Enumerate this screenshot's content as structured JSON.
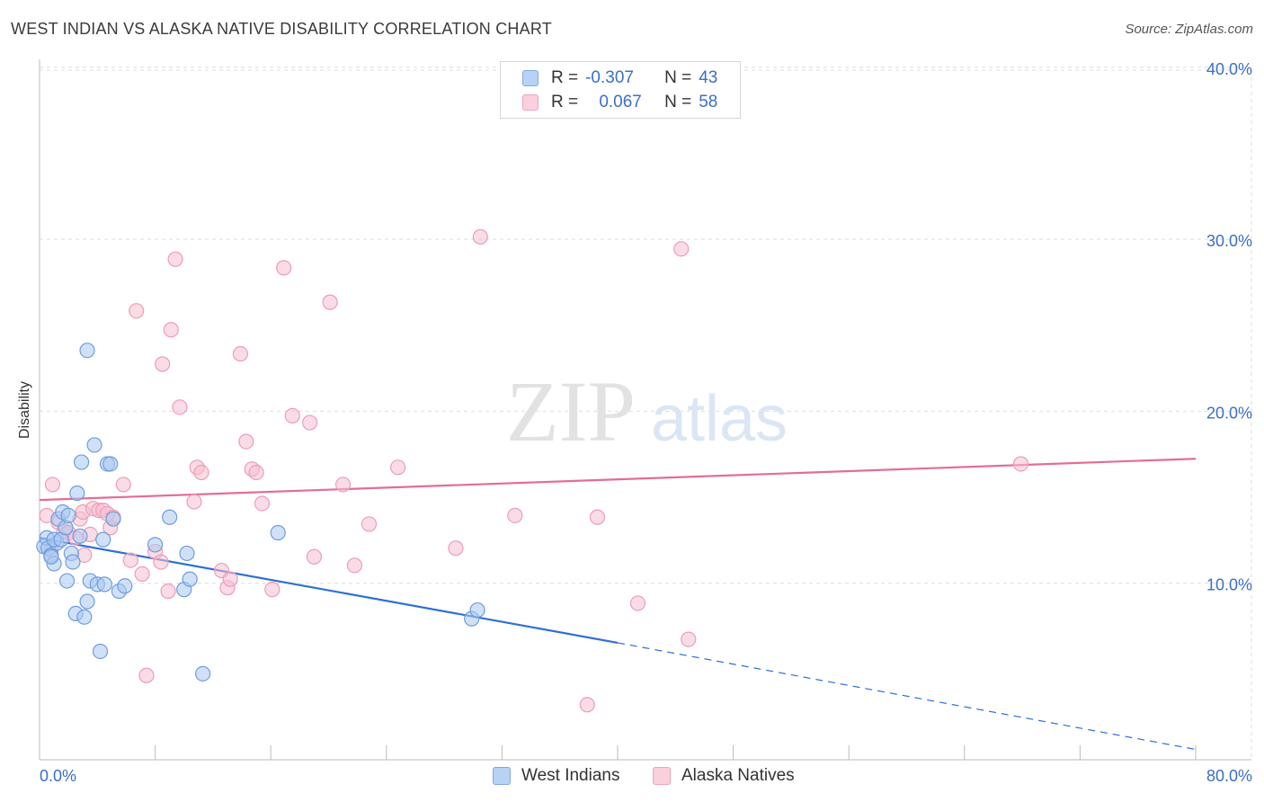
{
  "title": "WEST INDIAN VS ALASKA NATIVE DISABILITY CORRELATION CHART",
  "source": "Source: ZipAtlas.com",
  "watermark": {
    "zip": "ZIP",
    "atlas": "atlas"
  },
  "legend": {
    "rows": [
      {
        "r_label": "R =",
        "r_value": "-0.307",
        "n_label": "N =",
        "n_value": "43"
      },
      {
        "r_label": "R =",
        "r_value": "0.067",
        "n_label": "N =",
        "n_value": "58"
      }
    ]
  },
  "colors": {
    "blue_fill": "#a9c8f0",
    "blue_stroke": "#6d9de0",
    "blue_line": "#2d6fd6",
    "pink_fill": "#f6bfd0",
    "pink_stroke": "#ee9cb7",
    "pink_line": "#e46d95",
    "grid": "#dddddd",
    "tick_text": "#3a6fc8"
  },
  "chart_data": {
    "type": "scatter",
    "title": "WEST INDIAN VS ALASKA NATIVE DISABILITY CORRELATION CHART",
    "xlabel": "",
    "ylabel": "Disability",
    "xlim": [
      0,
      80
    ],
    "ylim": [
      0,
      42
    ],
    "x_tick_labels": [
      "0.0%",
      "80.0%"
    ],
    "y_ticks": [
      10,
      20,
      30,
      40
    ],
    "y_tick_labels": [
      "10.0%",
      "20.0%",
      "30.0%",
      "40.0%"
    ],
    "grid": true,
    "legend_position": "bottom-center",
    "series": [
      {
        "name": "West Indians",
        "r": -0.307,
        "n": 43,
        "trend": {
          "x0": 0,
          "y0": 12.9,
          "x1": 40,
          "y1": 6.8,
          "dashed_to_x": 80,
          "dashed_to_y": 0.6
        },
        "points": [
          [
            0.3,
            12.4
          ],
          [
            0.5,
            12.9
          ],
          [
            0.6,
            12.3
          ],
          [
            0.8,
            11.9
          ],
          [
            1.0,
            11.4
          ],
          [
            1.2,
            12.6
          ],
          [
            1.0,
            12.8
          ],
          [
            1.3,
            14.0
          ],
          [
            1.5,
            12.8
          ],
          [
            1.6,
            14.4
          ],
          [
            1.8,
            13.5
          ],
          [
            1.9,
            10.4
          ],
          [
            2.0,
            14.2
          ],
          [
            2.2,
            12.0
          ],
          [
            2.3,
            11.5
          ],
          [
            2.5,
            8.5
          ],
          [
            2.6,
            15.5
          ],
          [
            2.8,
            13.0
          ],
          [
            2.9,
            17.3
          ],
          [
            3.1,
            8.3
          ],
          [
            3.3,
            9.2
          ],
          [
            3.5,
            10.4
          ],
          [
            3.8,
            18.3
          ],
          [
            4.0,
            10.2
          ],
          [
            4.2,
            6.3
          ],
          [
            4.4,
            12.8
          ],
          [
            4.5,
            10.2
          ],
          [
            4.7,
            17.2
          ],
          [
            4.9,
            17.2
          ],
          [
            5.1,
            14.0
          ],
          [
            5.5,
            9.8
          ],
          [
            5.9,
            10.1
          ],
          [
            3.3,
            23.8
          ],
          [
            8.0,
            12.5
          ],
          [
            9.0,
            14.1
          ],
          [
            10.0,
            9.9
          ],
          [
            10.2,
            12.0
          ],
          [
            10.4,
            10.5
          ],
          [
            11.3,
            5.0
          ],
          [
            16.5,
            13.2
          ],
          [
            29.9,
            8.2
          ],
          [
            30.3,
            8.7
          ],
          [
            0.8,
            11.8
          ]
        ]
      },
      {
        "name": "Alaska Natives",
        "r": 0.067,
        "n": 58,
        "trend": {
          "x0": 0,
          "y0": 15.1,
          "x1": 80,
          "y1": 17.5
        },
        "points": [
          [
            0.5,
            14.2
          ],
          [
            0.8,
            12.2
          ],
          [
            0.9,
            16.0
          ],
          [
            1.3,
            13.8
          ],
          [
            1.7,
            13.3
          ],
          [
            2.0,
            13.2
          ],
          [
            2.5,
            12.9
          ],
          [
            2.8,
            14.0
          ],
          [
            3.0,
            14.4
          ],
          [
            3.1,
            11.9
          ],
          [
            3.5,
            13.1
          ],
          [
            3.7,
            14.6
          ],
          [
            4.1,
            14.5
          ],
          [
            4.4,
            14.5
          ],
          [
            4.7,
            14.3
          ],
          [
            4.9,
            13.5
          ],
          [
            5.1,
            14.1
          ],
          [
            5.8,
            16.0
          ],
          [
            6.3,
            11.6
          ],
          [
            6.7,
            26.1
          ],
          [
            7.1,
            10.8
          ],
          [
            7.4,
            4.9
          ],
          [
            8.0,
            12.1
          ],
          [
            8.4,
            11.5
          ],
          [
            8.5,
            23.0
          ],
          [
            8.9,
            9.8
          ],
          [
            9.1,
            25.0
          ],
          [
            9.4,
            29.1
          ],
          [
            9.7,
            20.5
          ],
          [
            10.7,
            15.0
          ],
          [
            10.9,
            17.0
          ],
          [
            11.2,
            16.7
          ],
          [
            12.6,
            11.0
          ],
          [
            13.0,
            10.0
          ],
          [
            13.2,
            10.5
          ],
          [
            13.9,
            23.6
          ],
          [
            14.3,
            18.5
          ],
          [
            14.7,
            16.9
          ],
          [
            15.0,
            16.7
          ],
          [
            15.4,
            14.9
          ],
          [
            16.1,
            9.9
          ],
          [
            16.9,
            28.6
          ],
          [
            17.5,
            20.0
          ],
          [
            18.7,
            19.6
          ],
          [
            19.0,
            11.8
          ],
          [
            20.1,
            26.6
          ],
          [
            21.0,
            16.0
          ],
          [
            21.8,
            11.3
          ],
          [
            22.8,
            13.7
          ],
          [
            24.8,
            17.0
          ],
          [
            28.8,
            12.3
          ],
          [
            30.5,
            30.4
          ],
          [
            32.9,
            14.2
          ],
          [
            37.9,
            3.2
          ],
          [
            38.6,
            14.1
          ],
          [
            41.4,
            9.1
          ],
          [
            44.4,
            29.7
          ],
          [
            44.9,
            7.0
          ],
          [
            67.9,
            17.2
          ]
        ]
      }
    ]
  }
}
